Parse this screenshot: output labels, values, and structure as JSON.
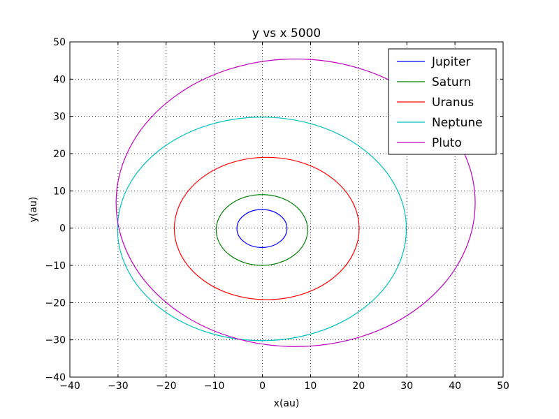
{
  "chart_data": {
    "type": "line",
    "title": "y vs x  5000",
    "xlabel": "x(au)",
    "ylabel": "y(au)",
    "xlim": [
      -40,
      50
    ],
    "ylim": [
      -40,
      50
    ],
    "xticks": [
      -40,
      -30,
      -20,
      -10,
      0,
      10,
      20,
      30,
      40,
      50
    ],
    "yticks": [
      -40,
      -30,
      -20,
      -10,
      0,
      10,
      20,
      30,
      40,
      50
    ],
    "grid": true,
    "legend_position": "top-right",
    "series": [
      {
        "name": "Jupiter",
        "color": "#0000ff",
        "orbit": {
          "cx": -0.1,
          "cy": -0.1,
          "rx": 5.2,
          "ry": 5.1
        }
      },
      {
        "name": "Saturn",
        "color": "#008000",
        "orbit": {
          "cx": -0.1,
          "cy": -0.5,
          "rx": 9.5,
          "ry": 9.5
        }
      },
      {
        "name": "Uranus",
        "color": "#ff0000",
        "orbit": {
          "cx": 0.9,
          "cy": -0.1,
          "rx": 19.2,
          "ry": 19.1
        }
      },
      {
        "name": "Neptune",
        "color": "#00bfbf",
        "orbit": {
          "cx": -0.1,
          "cy": -0.2,
          "rx": 30.0,
          "ry": 30.0
        }
      },
      {
        "name": "Pluto",
        "color": "#bf00bf",
        "orbit": {
          "cx": 6.9,
          "cy": 6.8,
          "rx": 37.3,
          "ry": 38.6
        }
      }
    ]
  }
}
